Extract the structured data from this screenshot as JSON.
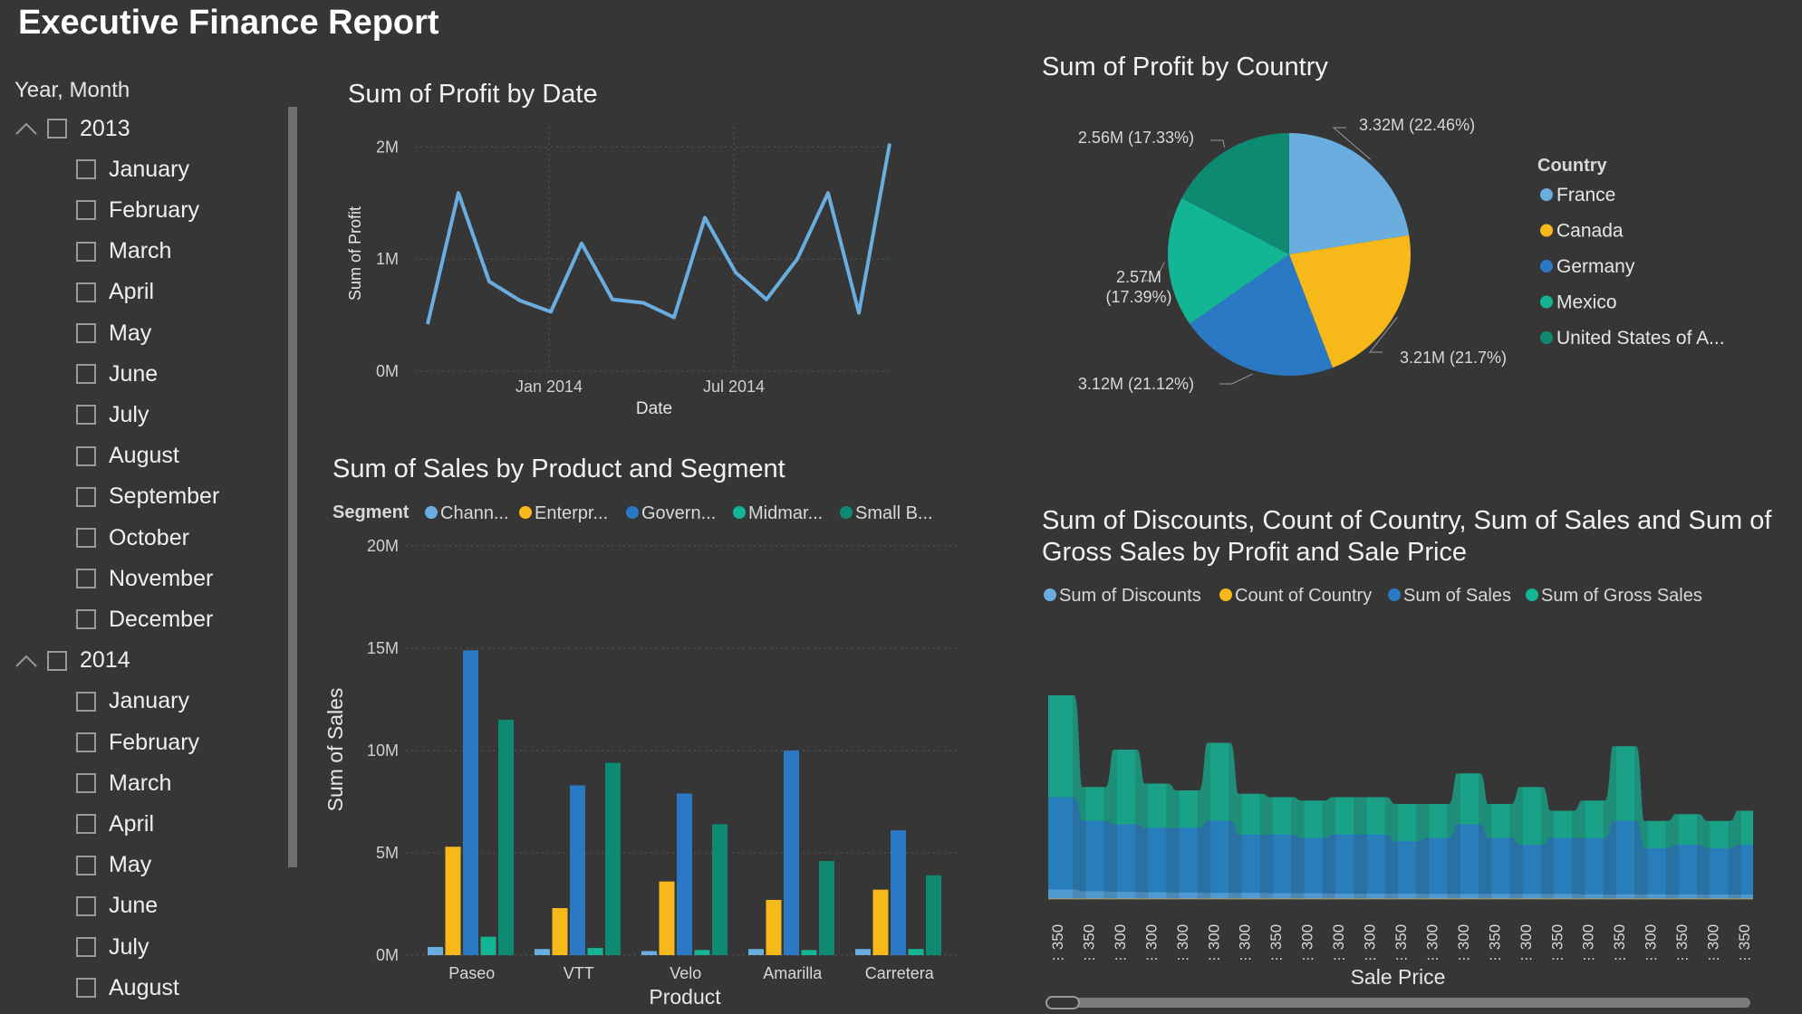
{
  "report": {
    "title": "Executive Finance Report"
  },
  "slicer": {
    "header": "Year, Month",
    "groups": [
      {
        "year": "2013",
        "months": [
          "January",
          "February",
          "March",
          "April",
          "May",
          "June",
          "July",
          "August",
          "September",
          "October",
          "November",
          "December"
        ]
      },
      {
        "year": "2014",
        "months": [
          "January",
          "February",
          "March",
          "April",
          "May",
          "June",
          "July",
          "August"
        ]
      }
    ]
  },
  "colors": {
    "background": "#363636",
    "series_light_blue": "#6aaee0",
    "series_yellow": "#f7b81a",
    "series_blue": "#2b78c4",
    "series_teal": "#14b595",
    "series_dark_teal": "#0e8a72"
  },
  "visuals": {
    "profit_by_date": {
      "title": "Sum of Profit by Date"
    },
    "profit_by_country": {
      "title": "Sum of Profit by Country"
    },
    "sales_by_product": {
      "title": "Sum of Sales by Product and Segment"
    },
    "discounts_by_price": {
      "title": "Sum of Discounts, Count of Country, Sum of Sales and Sum of Gross Sales by Profit and Sale Price"
    }
  },
  "chart_data": [
    {
      "id": "profit_by_date",
      "type": "line",
      "title": "Sum of Profit by Date",
      "xlabel": "Date",
      "ylabel": "Sum of Profit",
      "x": [
        "2013-09",
        "2013-10",
        "2013-11",
        "2013-12",
        "2014-01",
        "2014-02",
        "2014-03",
        "2014-04",
        "2014-05",
        "2014-06",
        "2014-07",
        "2014-08",
        "2014-09",
        "2014-10",
        "2014-11",
        "2014-12"
      ],
      "x_tick_labels": [
        "Jan 2014",
        "Jul 2014"
      ],
      "values": [
        0.42,
        1.59,
        0.8,
        0.63,
        0.53,
        1.14,
        0.64,
        0.61,
        0.48,
        1.37,
        0.88,
        0.64,
        1.0,
        1.59,
        0.52,
        2.03
      ],
      "unit": "M",
      "y_tick_labels": [
        "0M",
        "1M",
        "2M"
      ],
      "ylim": [
        0,
        2.1
      ],
      "grid": true
    },
    {
      "id": "profit_by_country",
      "type": "pie",
      "title": "Sum of Profit by Country",
      "legend_title": "Country",
      "legend_position": "right",
      "slices": [
        {
          "label": "France",
          "value": 3.32,
          "display": "3.32M (22.46%)",
          "color": "#6aaee0"
        },
        {
          "label": "Canada",
          "value": 3.21,
          "display": "3.21M (21.7%)",
          "color": "#f7b81a"
        },
        {
          "label": "Germany",
          "value": 3.12,
          "display": "3.12M (21.12%)",
          "color": "#2b78c4"
        },
        {
          "label": "Mexico",
          "value": 2.57,
          "display_line1": "2.57M",
          "display_line2": "(17.39%)",
          "color": "#14b595"
        },
        {
          "label": "United States of A...",
          "value": 2.56,
          "display": "2.56M (17.33%)",
          "color": "#0e8a72"
        }
      ],
      "unit": "M"
    },
    {
      "id": "sales_by_product",
      "type": "bar",
      "title": "Sum of Sales by Product and Segment",
      "xlabel": "Product",
      "ylabel": "Sum of Sales",
      "legend_title": "Segment",
      "legend_position": "top",
      "categories": [
        "Paseo",
        "VTT",
        "Velo",
        "Amarilla",
        "Carretera"
      ],
      "series": [
        {
          "name": "Chann...",
          "color": "#6aaee0",
          "values": [
            0.4,
            0.3,
            0.2,
            0.3,
            0.3
          ]
        },
        {
          "name": "Enterpr...",
          "color": "#f7b81a",
          "values": [
            5.3,
            2.3,
            3.6,
            2.7,
            3.2
          ]
        },
        {
          "name": "Govern...",
          "color": "#2b78c4",
          "values": [
            14.9,
            8.3,
            7.9,
            10.0,
            6.1
          ]
        },
        {
          "name": "Midmar...",
          "color": "#14b595",
          "values": [
            0.9,
            0.35,
            0.25,
            0.25,
            0.3
          ]
        },
        {
          "name": "Small B...",
          "color": "#0e8a72",
          "values": [
            11.5,
            9.4,
            6.4,
            4.6,
            3.9
          ]
        }
      ],
      "unit": "M",
      "y_tick_labels": [
        "0M",
        "5M",
        "10M",
        "15M",
        "20M"
      ],
      "ylim": [
        0,
        20
      ],
      "grid": true
    },
    {
      "id": "discounts_by_price",
      "type": "area",
      "title": "Sum of Discounts, Count of Country, Sum of Sales and Sum of Gross Sales by Profit and Sale Price",
      "xlabel": "Sale Price",
      "legend_position": "top",
      "categories": [
        "350",
        "350",
        "300",
        "300",
        "300",
        "300",
        "300",
        "350",
        "300",
        "300",
        "300",
        "350",
        "300",
        "300",
        "350",
        "300",
        "350",
        "300",
        "350",
        "300",
        "350",
        "300",
        "350"
      ],
      "category_suffix": "...",
      "series": [
        {
          "name": "Sum of Discounts",
          "color": "#6aaee0",
          "values": [
            0.28,
            0.23,
            0.21,
            0.2,
            0.19,
            0.18,
            0.18,
            0.17,
            0.17,
            0.16,
            0.16,
            0.16,
            0.15,
            0.15,
            0.15,
            0.15,
            0.15,
            0.14,
            0.14,
            0.14,
            0.14,
            0.13,
            0.13
          ]
        },
        {
          "name": "Count of Country",
          "color": "#f7b81a",
          "values": [
            0,
            0,
            0,
            0,
            0,
            0,
            0,
            0,
            0,
            0,
            0,
            0,
            0,
            0,
            0,
            0,
            0,
            0,
            0,
            0,
            0,
            0,
            0
          ]
        },
        {
          "name": "Sum of  Sales",
          "color": "#2b78c4",
          "values": [
            3.0,
            2.3,
            2.2,
            2.1,
            2.1,
            2.3,
            1.9,
            1.9,
            1.8,
            1.9,
            1.9,
            1.7,
            1.8,
            2.2,
            1.8,
            1.6,
            1.8,
            1.8,
            2.3,
            1.5,
            1.6,
            1.5,
            1.6
          ]
        },
        {
          "name": "Sum of Gross Sales",
          "color": "#14b595",
          "values": [
            6.0,
            3.3,
            4.4,
            3.4,
            3.2,
            4.6,
            3.1,
            3.0,
            2.9,
            3.0,
            3.0,
            2.8,
            2.8,
            3.7,
            2.8,
            3.3,
            2.6,
            2.9,
            4.5,
            2.3,
            2.5,
            2.3,
            2.6
          ]
        }
      ],
      "grid": false
    }
  ]
}
